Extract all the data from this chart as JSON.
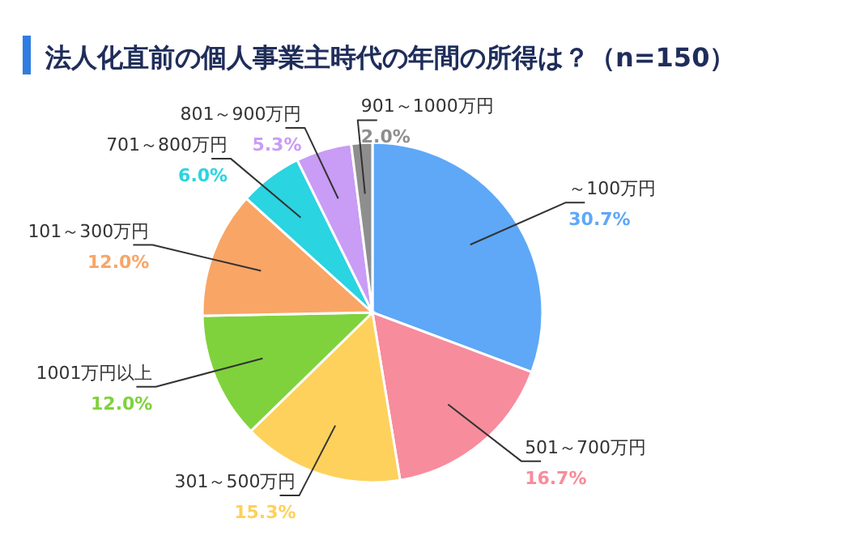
{
  "chart_data": {
    "type": "pie",
    "title": "法人化直前の個人事業主時代の年間の所得は？（n=150）",
    "categories": [
      "～100万円",
      "501～700万円",
      "301～500万円",
      "1001万円以上",
      "101～300万円",
      "701～800万円",
      "801～900万円",
      "901～1000万円"
    ],
    "values": [
      30.7,
      16.7,
      15.3,
      12.0,
      12.0,
      6.0,
      5.3,
      2.0
    ],
    "value_labels": [
      "30.7%",
      "16.7%",
      "15.3%",
      "12.0%",
      "12.0%",
      "6.0%",
      "5.3%",
      "2.0%"
    ],
    "colors": [
      "#5ea8f7",
      "#f78c9c",
      "#fdd15c",
      "#7fd23c",
      "#f9a566",
      "#2ad4e0",
      "#c99cf5",
      "#8e8e8e"
    ],
    "legend": false
  }
}
